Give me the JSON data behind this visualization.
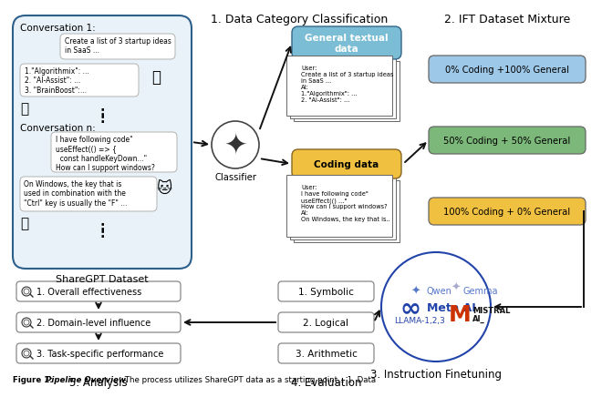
{
  "bg_color": "#ffffff",
  "section1_title": "1. Data Category Classification",
  "section2_title": "2. IFT Dataset Mixture",
  "section3_title": "3. Instruction Finetuning",
  "section4_title": "4. Evaluation",
  "section5_title": "5. Analysis",
  "sharegpt_label": "ShareGPT Dataset",
  "conv1_label": "Conversation 1:",
  "convn_label": "Conversation n:",
  "classifier_label": "Classifier",
  "lp_fill": "#e8f2f8",
  "lp_edge": "#2c5f8a",
  "general_box_color": "#7bbdd4",
  "general_box_label": "General textual\ndata",
  "coding_box_color": "#f0c040",
  "coding_box_label": "Coding data",
  "mixture_colors": [
    "#9ec8e8",
    "#7cb87a",
    "#f0c040"
  ],
  "mixture_labels": [
    "0% Coding +100% General",
    "50% Coding + 50% General",
    "100% Coding + 0% General"
  ],
  "analysis_items": [
    "1. Overall effectiveness",
    "2. Domain-level influence",
    "3. Task-specific performance"
  ],
  "eval_items": [
    "1. Symbolic",
    "2. Logical",
    "3. Arithmetic"
  ],
  "conv1_q": "Create a list of 3 startup ideas\nin SaaS ...",
  "conv1_a": "1.\"Algorithmix\": ...\n2. \"AI-Assist\": ...\n3. \"BrainBoost\":...",
  "convn_q": "I have following code\"\nuseEffect(() => {\n  const handleKeyDown...\"\nHow can I support windows?",
  "convn_a": "On Windows, the key that is\nused in combination with the\n\"Ctrl\" key is usually the \"F\" ...",
  "gen_doc_text": "User:\nCreate a list of 3 startup ideas\nin SaaS ...\nAI:\n1.\"Algorithmix\": ...\n2. \"AI-Assist\": ...",
  "code_doc_text": "User:\nI have following code\"\nuseEffect(() ...\"\nHow can I support windows?\nAI:\nOn Windows, the key that is..",
  "caption_bold1": "Figure 1: ",
  "caption_bold2": "Pipeline Overview.",
  "caption_normal": " The process utilizes ShareGPT data as a starting point... 1. Data"
}
